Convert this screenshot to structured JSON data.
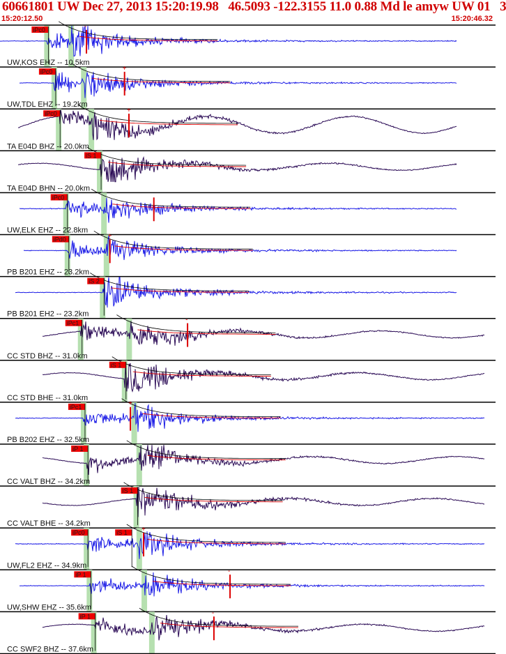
{
  "colors": {
    "header_text": "#d00000",
    "pick_box": "#ee0000",
    "pick_text": "#222222",
    "window_band": "#b6e0b0",
    "trace_blue": "#1a1ae6",
    "trace_purple": "#2a0a55",
    "marker_red": "#dd0000",
    "divider": "#000000"
  },
  "header": {
    "title": "60661801 UW Dec 27, 2013 15:20:19.98   46.5093 -122.3155 11.0 0.88 Md le amyw UW 01   3",
    "start_time": "15:20:12.50",
    "end_time": "15:20:46.32"
  },
  "chart_data": {
    "type": "line",
    "time_range": [
      "15:20:12.50",
      "15:20:46.32"
    ],
    "traces": [
      {
        "label": "UW,KOS EHZ -- 10.5km",
        "color": "blue",
        "picks": [
          {
            "text": "iPc0",
            "t": 15.8
          }
        ],
        "extra_markers": [
          {
            "t": 18.4,
            "sign": "-"
          }
        ]
      },
      {
        "label": "UW,TDL EHZ -- 19.2km",
        "color": "blue",
        "picks": [
          {
            "text": "iPc0",
            "t": 16.3
          }
        ],
        "extra_markers": [
          {
            "t": 21.0,
            "sign": "+"
          }
        ]
      },
      {
        "label": "TA E04D BHZ -- 20.0km",
        "color": "purple",
        "picks": [
          {
            "text": "iPc0",
            "t": 16.6
          }
        ],
        "extra_markers": [
          {
            "t": 21.3,
            "sign": "+"
          }
        ]
      },
      {
        "label": "TA E04D BHN -- 20.0km",
        "color": "purple",
        "picks": [
          {
            "text": "iS 1",
            "t": 19.4
          }
        ],
        "extra_markers": []
      },
      {
        "label": "UW,ELK EHZ -- 22.8km",
        "color": "blue",
        "picks": [
          {
            "text": "iPc0",
            "t": 17.1
          }
        ],
        "extra_markers": [
          {
            "t": 23.0,
            "sign": ""
          }
        ]
      },
      {
        "label": "PB B201 EHZ -- 23.2km",
        "color": "blue",
        "picks": [
          {
            "text": "iPd0",
            "t": 17.2
          }
        ],
        "extra_markers": [
          {
            "t": 20.0,
            "sign": "+"
          }
        ]
      },
      {
        "label": "PB B201 EH2 -- 23.2km",
        "color": "blue",
        "picks": [
          {
            "text": "iS 2",
            "t": 19.6
          }
        ],
        "extra_markers": []
      },
      {
        "label": "CC STD BHZ -- 31.0km",
        "color": "purple",
        "picks": [
          {
            "text": "iPc1",
            "t": 18.1
          }
        ],
        "extra_markers": [
          {
            "t": 25.3,
            "sign": "-"
          }
        ]
      },
      {
        "label": "CC STD BHE -- 31.0km",
        "color": "purple",
        "picks": [
          {
            "text": "iS 1",
            "t": 21.1
          }
        ],
        "extra_markers": []
      },
      {
        "label": "PB B202 EHZ -- 32.5km",
        "color": "blue",
        "picks": [
          {
            "text": "iPc1",
            "t": 18.3
          }
        ],
        "extra_markers": [
          {
            "t": 21.4,
            "sign": "+"
          }
        ]
      },
      {
        "label": "CC VALT BHZ -- 34.2km",
        "color": "purple",
        "picks": [
          {
            "text": "iP 1",
            "t": 18.5
          }
        ],
        "extra_markers": []
      },
      {
        "label": "CC VALT BHE -- 34.2km",
        "color": "purple",
        "picks": [
          {
            "text": "iS 1",
            "t": 21.9
          }
        ],
        "extra_markers": []
      },
      {
        "label": "UW,FL2 EHZ -- 34.9km",
        "color": "blue",
        "picks": [
          {
            "text": "iPc0",
            "t": 18.5
          },
          {
            "text": "iS 1",
            "t": 21.5
          }
        ],
        "extra_markers": [
          {
            "t": 22.3,
            "sign": "+"
          }
        ]
      },
      {
        "label": "UW,SHW EHZ -- 35.6km",
        "color": "blue",
        "picks": [
          {
            "text": "iP 1",
            "t": 18.7
          }
        ],
        "extra_markers": [
          {
            "t": 28.2,
            "sign": "-"
          }
        ]
      },
      {
        "label": "CC SWF2 BHZ -- 37.6km",
        "color": "purple",
        "picks": [
          {
            "text": "iP 1",
            "t": 19.0
          }
        ],
        "extra_markers": [
          {
            "t": 27.1,
            "sign": "-"
          }
        ]
      }
    ]
  }
}
